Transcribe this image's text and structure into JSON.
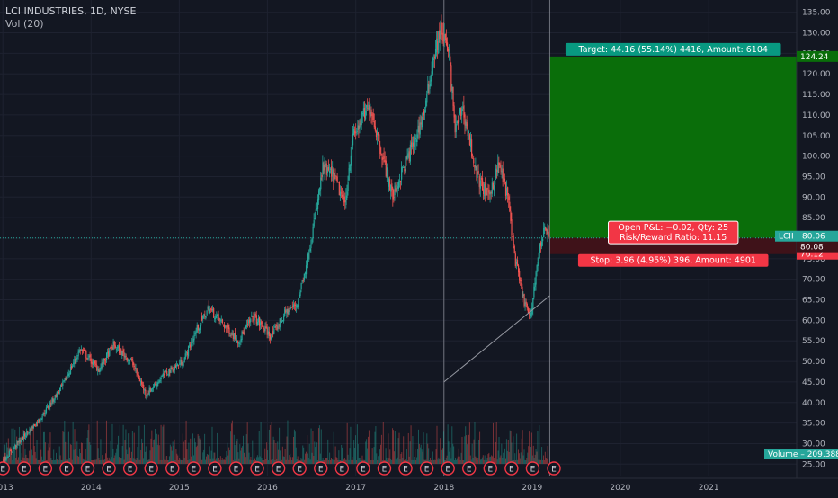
{
  "header": {
    "symbol_line": "LCI INDUSTRIES, 1D, NYSE",
    "volume_indicator": "Vol (20)"
  },
  "chart_data": {
    "type": "candlestick",
    "title": "LCI INDUSTRIES, 1D, NYSE",
    "price_axis": {
      "range": [
        22,
        138
      ],
      "ticks": [
        25,
        30,
        35,
        40,
        45,
        50,
        55,
        60,
        65,
        70,
        75,
        80,
        85,
        90,
        95,
        100,
        105,
        110,
        115,
        120,
        125,
        130,
        135
      ],
      "tick_labels": [
        "25.00",
        "30.00",
        "35.00",
        "40.00",
        "45.00",
        "50.00",
        "55.00",
        "60.00",
        "65.00",
        "70.00",
        "75.00",
        "80.00",
        "85.00",
        "90.00",
        "95.00",
        "100.00",
        "105.00",
        "110.00",
        "115.00",
        "120.00",
        "125.00",
        "130.00",
        "135.00"
      ]
    },
    "time_axis": {
      "range": [
        "2012-12-20",
        "2021-12-31"
      ],
      "ticks": [
        "2013-01-01",
        "2014-01-01",
        "2015-01-01",
        "2016-01-01",
        "2017-01-01",
        "2018-01-01",
        "2019-01-01",
        "2020-01-01",
        "2021-01-01"
      ],
      "tick_labels": [
        "2013",
        "2014",
        "2015",
        "2016",
        "2017",
        "2018",
        "2019",
        "2020",
        "2021"
      ]
    },
    "price_path": [
      {
        "date": "2013-01-01",
        "price": 26
      },
      {
        "date": "2013-03-15",
        "price": 31
      },
      {
        "date": "2013-06-01",
        "price": 36
      },
      {
        "date": "2013-09-01",
        "price": 44
      },
      {
        "date": "2013-11-15",
        "price": 53
      },
      {
        "date": "2014-02-01",
        "price": 48
      },
      {
        "date": "2014-04-01",
        "price": 54
      },
      {
        "date": "2014-06-15",
        "price": 50
      },
      {
        "date": "2014-08-15",
        "price": 42
      },
      {
        "date": "2014-11-01",
        "price": 47
      },
      {
        "date": "2015-01-15",
        "price": 50
      },
      {
        "date": "2015-03-15",
        "price": 58
      },
      {
        "date": "2015-05-01",
        "price": 63
      },
      {
        "date": "2015-07-01",
        "price": 59
      },
      {
        "date": "2015-09-01",
        "price": 55
      },
      {
        "date": "2015-11-01",
        "price": 61
      },
      {
        "date": "2016-01-15",
        "price": 56
      },
      {
        "date": "2016-03-15",
        "price": 62
      },
      {
        "date": "2016-05-01",
        "price": 64
      },
      {
        "date": "2016-06-01",
        "price": 72
      },
      {
        "date": "2016-07-15",
        "price": 85
      },
      {
        "date": "2016-08-15",
        "price": 97
      },
      {
        "date": "2016-10-01",
        "price": 95
      },
      {
        "date": "2016-11-15",
        "price": 88
      },
      {
        "date": "2016-12-15",
        "price": 104
      },
      {
        "date": "2017-02-01",
        "price": 110
      },
      {
        "date": "2017-03-01",
        "price": 112
      },
      {
        "date": "2017-04-15",
        "price": 101
      },
      {
        "date": "2017-06-01",
        "price": 90
      },
      {
        "date": "2017-07-15",
        "price": 97
      },
      {
        "date": "2017-09-01",
        "price": 104
      },
      {
        "date": "2017-10-15",
        "price": 112
      },
      {
        "date": "2017-11-15",
        "price": 124
      },
      {
        "date": "2017-12-20",
        "price": 131
      },
      {
        "date": "2018-01-20",
        "price": 124
      },
      {
        "date": "2018-02-15",
        "price": 106
      },
      {
        "date": "2018-03-15",
        "price": 112
      },
      {
        "date": "2018-04-15",
        "price": 104
      },
      {
        "date": "2018-05-15",
        "price": 95
      },
      {
        "date": "2018-07-01",
        "price": 90
      },
      {
        "date": "2018-08-15",
        "price": 98
      },
      {
        "date": "2018-09-20",
        "price": 90
      },
      {
        "date": "2018-10-20",
        "price": 75
      },
      {
        "date": "2018-11-20",
        "price": 66
      },
      {
        "date": "2018-12-24",
        "price": 60
      },
      {
        "date": "2019-01-10",
        "price": 70
      },
      {
        "date": "2019-02-01",
        "price": 78
      },
      {
        "date": "2019-02-20",
        "price": 83
      },
      {
        "date": "2019-03-08",
        "price": 80
      }
    ],
    "long_position": {
      "entry": 80.08,
      "target": 124.24,
      "stop": 76.12,
      "start_date": "2019-03-15",
      "target_label": "Target: 44.16 (55.14%) 4416, Amount: 6104",
      "stop_label": "Stop: 3.96 (4.95%) 396, Amount: 4901",
      "pnl_label": "Open P&L: −0.02, Qty: 25",
      "rr_label": "Risk/Reward Ratio: 11.15",
      "target_price_label": "124.24",
      "entry_price_label": "80.08",
      "stop_price_label": "76.12"
    },
    "last_price": {
      "symbol": "LCII",
      "value": "80.06",
      "price": 80.06
    },
    "vertical_markers": [
      "2018-01-01",
      "2019-03-15"
    ],
    "trend_line": {
      "start": {
        "date": "2018-01-01",
        "price": 45
      },
      "end": {
        "date": "2019-03-15",
        "price": 66
      }
    },
    "volume": {
      "label": "Volume",
      "value": "209.388K"
    },
    "earnings_marker": {
      "label": "E",
      "count": 27,
      "start": "2013-01-01",
      "end": "2019-04-01"
    },
    "colors": {
      "background": "#131722",
      "grid": "#1e2230",
      "axis_text": "#b2b5be",
      "up": "#26a69a",
      "down": "#ef5350",
      "target_zone": "#0a6e0a",
      "stop_zone": "#3f1219",
      "target_label": "#089981",
      "stop_label": "#f23645",
      "last_price": "#26a69a",
      "earnings": "#f23645"
    }
  }
}
